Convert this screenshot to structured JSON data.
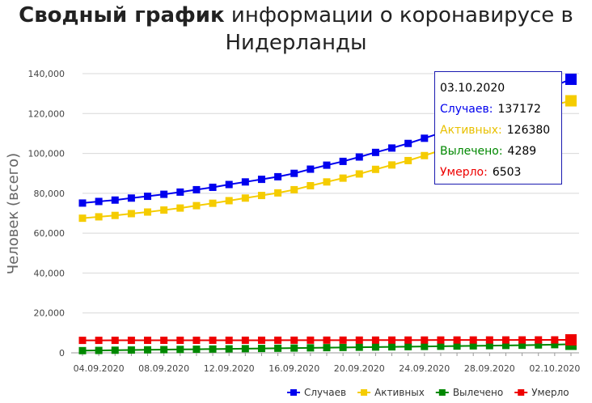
{
  "title": {
    "bold": "Сводный график",
    "rest": "информации о коронавирусе в Нидерланды"
  },
  "chart_data": {
    "type": "line",
    "ylabel": "Человек (всего)",
    "ylim": [
      0,
      140000
    ],
    "yticks": [
      0,
      20000,
      40000,
      60000,
      80000,
      100000,
      120000,
      140000
    ],
    "ytick_labels": [
      "0",
      "20,000",
      "40,000",
      "60,000",
      "80,000",
      "100,000",
      "120,000",
      "140,000"
    ],
    "xtick_labels": [
      "04.09.2020",
      "08.09.2020",
      "12.09.2020",
      "16.09.2020",
      "20.09.2020",
      "24.09.2020",
      "28.09.2020",
      "02.10.2020"
    ],
    "x": [
      "03.09.2020",
      "04.09.2020",
      "05.09.2020",
      "06.09.2020",
      "07.09.2020",
      "08.09.2020",
      "09.09.2020",
      "10.09.2020",
      "11.09.2020",
      "12.09.2020",
      "13.09.2020",
      "14.09.2020",
      "15.09.2020",
      "16.09.2020",
      "17.09.2020",
      "18.09.2020",
      "19.09.2020",
      "20.09.2020",
      "21.09.2020",
      "22.09.2020",
      "23.09.2020",
      "24.09.2020",
      "25.09.2020",
      "26.09.2020",
      "27.09.2020",
      "28.09.2020",
      "29.09.2020",
      "30.09.2020",
      "01.10.2020",
      "02.10.2020",
      "03.10.2020"
    ],
    "grid": true,
    "legend_position": "bottom-right",
    "series": [
      {
        "name": "Случаев",
        "color": "#0000ee",
        "values": [
          75100,
          75900,
          76600,
          77600,
          78500,
          79500,
          80600,
          81800,
          83000,
          84400,
          85700,
          87000,
          88300,
          90000,
          92100,
          94100,
          96000,
          98200,
          100500,
          102700,
          105000,
          107600,
          110300,
          113700,
          117000,
          120500,
          123900,
          127500,
          131000,
          134000,
          137172
        ]
      },
      {
        "name": "Активных",
        "color": "#f5cc00",
        "values": [
          67500,
          68200,
          68900,
          69800,
          70600,
          71600,
          72600,
          73800,
          75000,
          76300,
          77600,
          78900,
          80200,
          81800,
          83800,
          85700,
          87600,
          89700,
          92000,
          94200,
          96400,
          98900,
          101600,
          104900,
          108100,
          111600,
          114900,
          118400,
          121800,
          124400,
          126380
        ]
      },
      {
        "name": "Вылечено",
        "color": "#008800",
        "values": [
          1100,
          1200,
          1300,
          1400,
          1500,
          1600,
          1700,
          1800,
          1900,
          2000,
          2100,
          2200,
          2300,
          2400,
          2500,
          2600,
          2700,
          2800,
          2900,
          3000,
          3100,
          3200,
          3300,
          3400,
          3500,
          3600,
          3700,
          3800,
          3950,
          4100,
          4289
        ]
      },
      {
        "name": "Умерло",
        "color": "#ee0000",
        "values": [
          6250,
          6260,
          6270,
          6270,
          6280,
          6280,
          6290,
          6290,
          6300,
          6300,
          6310,
          6310,
          6320,
          6330,
          6340,
          6350,
          6360,
          6370,
          6380,
          6390,
          6400,
          6410,
          6420,
          6430,
          6440,
          6450,
          6460,
          6470,
          6480,
          6490,
          6503
        ]
      }
    ]
  },
  "tooltip": {
    "date": "03.10.2020",
    "rows": [
      {
        "label": "Случаев:",
        "value": "137172",
        "color": "#0000ee"
      },
      {
        "label": "Активных:",
        "value": "126380",
        "color": "#f5cc00"
      },
      {
        "label": "Вылечено:",
        "value": "4289",
        "color": "#008800"
      },
      {
        "label": "Умерло:",
        "value": "6503",
        "color": "#ee0000"
      }
    ]
  }
}
